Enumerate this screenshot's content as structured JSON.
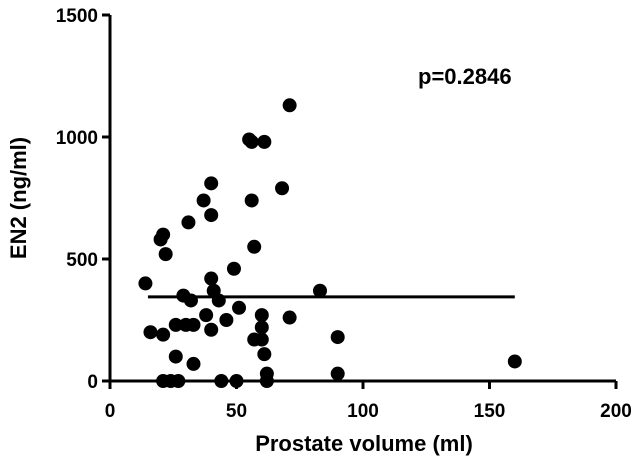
{
  "chart_data": {
    "type": "scatter",
    "xlabel": "Prostate volume (ml)",
    "ylabel": "EN2 (ng/ml)",
    "xlim": [
      0,
      200
    ],
    "ylim": [
      0,
      1500
    ],
    "xticks": [
      0,
      50,
      100,
      150,
      200
    ],
    "yticks": [
      0,
      500,
      1000,
      1500
    ],
    "grid": false,
    "annotation": "p=0.2846",
    "fit_line": {
      "x": [
        15,
        160
      ],
      "y": [
        345,
        345
      ]
    },
    "points": [
      {
        "x": 14,
        "y": 400
      },
      {
        "x": 16,
        "y": 200
      },
      {
        "x": 20,
        "y": 580
      },
      {
        "x": 21,
        "y": 600
      },
      {
        "x": 22,
        "y": 520
      },
      {
        "x": 21,
        "y": 190
      },
      {
        "x": 21,
        "y": 0
      },
      {
        "x": 24,
        "y": 0
      },
      {
        "x": 26,
        "y": 230
      },
      {
        "x": 26,
        "y": 100
      },
      {
        "x": 27,
        "y": 0
      },
      {
        "x": 29,
        "y": 350
      },
      {
        "x": 30,
        "y": 230
      },
      {
        "x": 31,
        "y": 650
      },
      {
        "x": 32,
        "y": 330
      },
      {
        "x": 33,
        "y": 70
      },
      {
        "x": 33,
        "y": 230
      },
      {
        "x": 37,
        "y": 740
      },
      {
        "x": 38,
        "y": 270
      },
      {
        "x": 40,
        "y": 810
      },
      {
        "x": 40,
        "y": 680
      },
      {
        "x": 40,
        "y": 420
      },
      {
        "x": 40,
        "y": 210
      },
      {
        "x": 41,
        "y": 370
      },
      {
        "x": 43,
        "y": 330
      },
      {
        "x": 44,
        "y": 0
      },
      {
        "x": 46,
        "y": 250
      },
      {
        "x": 49,
        "y": 460
      },
      {
        "x": 50,
        "y": 0
      },
      {
        "x": 51,
        "y": 300
      },
      {
        "x": 55,
        "y": 990
      },
      {
        "x": 56,
        "y": 980
      },
      {
        "x": 56,
        "y": 740
      },
      {
        "x": 57,
        "y": 550
      },
      {
        "x": 57,
        "y": 170
      },
      {
        "x": 61,
        "y": 980
      },
      {
        "x": 60,
        "y": 270
      },
      {
        "x": 60,
        "y": 220
      },
      {
        "x": 60,
        "y": 170
      },
      {
        "x": 61,
        "y": 110
      },
      {
        "x": 62,
        "y": 30
      },
      {
        "x": 62,
        "y": 0
      },
      {
        "x": 68,
        "y": 790
      },
      {
        "x": 71,
        "y": 1130
      },
      {
        "x": 71,
        "y": 260
      },
      {
        "x": 83,
        "y": 370
      },
      {
        "x": 90,
        "y": 180
      },
      {
        "x": 90,
        "y": 30
      },
      {
        "x": 160,
        "y": 80
      }
    ]
  }
}
